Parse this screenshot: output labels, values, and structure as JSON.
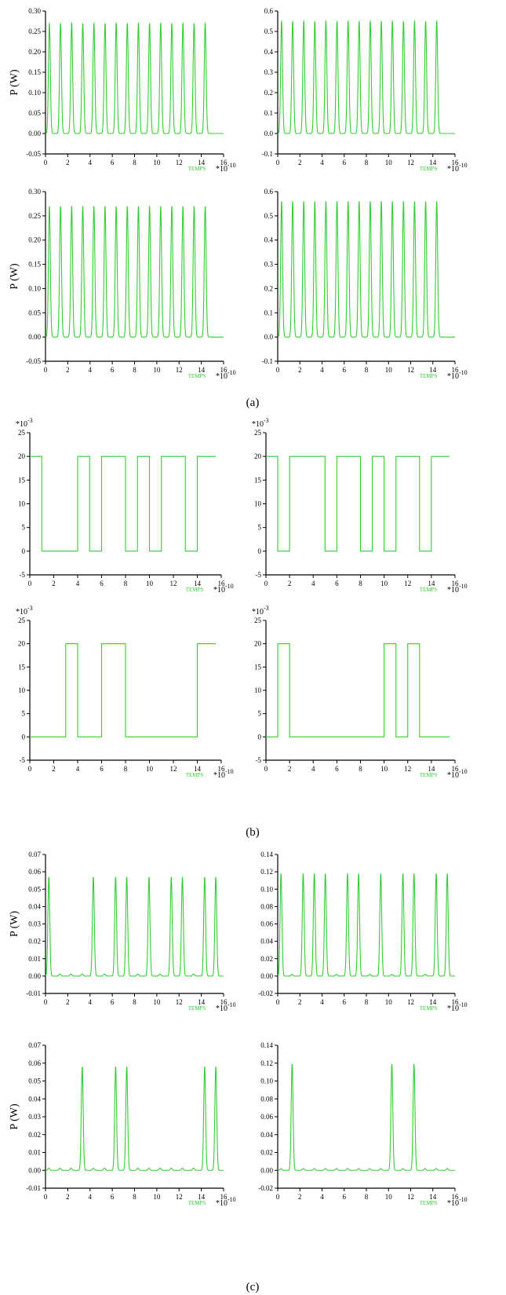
{
  "figure": {
    "section_labels": [
      "(a)",
      "(b)",
      "(c)"
    ],
    "colors": {
      "trace": "#33cc33",
      "tag": "#33cc33",
      "axis": "#000000"
    }
  },
  "chart_data": [
    {
      "id": "a1",
      "type": "line",
      "section": "a",
      "ylabel": "P (W)",
      "xtag": "TEMPS",
      "xmult_base": "*10",
      "xmult_exp": "-10",
      "ymult_base": "",
      "ymult_exp": "",
      "xlim": [
        0,
        16
      ],
      "ylim": [
        -0.05,
        0.3
      ],
      "xticks": [
        "0",
        "2",
        "4",
        "6",
        "8",
        "10",
        "12",
        "14",
        "16"
      ],
      "yticks": [
        "-0.05",
        "0.00",
        "0.05",
        "0.10",
        "0.15",
        "0.20",
        "0.25",
        "0.30"
      ],
      "signal": {
        "kind": "pulses",
        "period": 1,
        "offset": 0.35,
        "count": 15,
        "peak": 0.27,
        "width": 0.2
      }
    },
    {
      "id": "a2",
      "type": "line",
      "section": "a",
      "ylabel": "",
      "xtag": "TEMPS",
      "xmult_base": "*10",
      "xmult_exp": "-10",
      "ymult_base": "",
      "ymult_exp": "",
      "xlim": [
        0,
        16
      ],
      "ylim": [
        -0.1,
        0.6
      ],
      "xticks": [
        "0",
        "2",
        "4",
        "6",
        "8",
        "10",
        "12",
        "14",
        "16"
      ],
      "yticks": [
        "-0.1",
        "0.0",
        "0.1",
        "0.2",
        "0.3",
        "0.4",
        "0.5",
        "0.6"
      ],
      "signal": {
        "kind": "pulses",
        "period": 1,
        "offset": 0.35,
        "count": 15,
        "peak": 0.55,
        "width": 0.2
      }
    },
    {
      "id": "a3",
      "type": "line",
      "section": "a",
      "ylabel": "P (W)",
      "xtag": "TEMPS",
      "xmult_base": "*10",
      "xmult_exp": "-10",
      "ymult_base": "",
      "ymult_exp": "",
      "xlim": [
        0,
        16
      ],
      "ylim": [
        -0.05,
        0.3
      ],
      "xticks": [
        "0",
        "2",
        "4",
        "6",
        "8",
        "10",
        "12",
        "14",
        "16"
      ],
      "yticks": [
        "-0.05",
        "0.00",
        "0.05",
        "0.10",
        "0.15",
        "0.20",
        "0.25",
        "0.30"
      ],
      "signal": {
        "kind": "pulses",
        "period": 1,
        "offset": 0.35,
        "count": 15,
        "peak": 0.27,
        "width": 0.2
      }
    },
    {
      "id": "a4",
      "type": "line",
      "section": "a",
      "ylabel": "",
      "xtag": "TEMPS",
      "xmult_base": "*10",
      "xmult_exp": "-10",
      "ymult_base": "",
      "ymult_exp": "",
      "xlim": [
        0,
        16
      ],
      "ylim": [
        -0.1,
        0.6
      ],
      "xticks": [
        "0",
        "2",
        "4",
        "6",
        "8",
        "10",
        "12",
        "14",
        "16"
      ],
      "yticks": [
        "-0.1",
        "0.0",
        "0.1",
        "0.2",
        "0.3",
        "0.4",
        "0.5",
        "0.6"
      ],
      "signal": {
        "kind": "pulses",
        "period": 1,
        "offset": 0.35,
        "count": 15,
        "peak": 0.56,
        "width": 0.2
      }
    },
    {
      "id": "b1",
      "type": "line",
      "section": "b",
      "ylabel": "",
      "xtag": "TEMPS",
      "xmult_base": "*10",
      "xmult_exp": "-10",
      "ymult_base": "*10",
      "ymult_exp": "-3",
      "xlim": [
        0,
        16
      ],
      "ylim": [
        -5,
        25
      ],
      "xticks": [
        "0",
        "2",
        "4",
        "6",
        "8",
        "10",
        "12",
        "14",
        "16"
      ],
      "yticks": [
        "-5",
        "0",
        "5",
        "10",
        "15",
        "20",
        "25"
      ],
      "signal": {
        "kind": "bits",
        "bits": [
          1,
          0,
          0,
          0,
          1,
          0,
          1,
          1,
          0,
          1,
          0,
          1,
          1,
          0,
          1,
          1
        ],
        "high": 20,
        "low": 0
      }
    },
    {
      "id": "b2",
      "type": "line",
      "section": "b",
      "ylabel": "",
      "xtag": "TEMPS",
      "xmult_base": "*10",
      "xmult_exp": "-10",
      "ymult_base": "*10",
      "ymult_exp": "-3",
      "xlim": [
        0,
        16
      ],
      "ylim": [
        -5,
        25
      ],
      "xticks": [
        "0",
        "2",
        "4",
        "6",
        "8",
        "10",
        "12",
        "14",
        "16"
      ],
      "yticks": [
        "-5",
        "0",
        "5",
        "10",
        "15",
        "20",
        "25"
      ],
      "signal": {
        "kind": "bits",
        "bits": [
          1,
          0,
          1,
          1,
          1,
          0,
          1,
          1,
          0,
          1,
          0,
          1,
          1,
          0,
          1,
          1
        ],
        "high": 20,
        "low": 0
      }
    },
    {
      "id": "b3",
      "type": "line",
      "section": "b",
      "ylabel": "",
      "xtag": "TEMPS",
      "xmult_base": "*10",
      "xmult_exp": "-10",
      "ymult_base": "*10",
      "ymult_exp": "-3",
      "xlim": [
        0,
        16
      ],
      "ylim": [
        -5,
        25
      ],
      "xticks": [
        "0",
        "2",
        "4",
        "6",
        "8",
        "10",
        "12",
        "14",
        "16"
      ],
      "yticks": [
        "-5",
        "0",
        "5",
        "10",
        "15",
        "20",
        "25"
      ],
      "signal": {
        "kind": "bits",
        "bits": [
          0,
          0,
          0,
          1,
          0,
          0,
          1,
          1,
          0,
          0,
          0,
          0,
          0,
          0,
          1,
          1
        ],
        "high": 20,
        "low": 0
      }
    },
    {
      "id": "b4",
      "type": "line",
      "section": "b",
      "ylabel": "",
      "xtag": "TEMPS",
      "xmult_base": "*10",
      "xmult_exp": "-10",
      "ymult_base": "*10",
      "ymult_exp": "-3",
      "xlim": [
        0,
        16
      ],
      "ylim": [
        -5,
        25
      ],
      "xticks": [
        "0",
        "2",
        "4",
        "6",
        "8",
        "10",
        "12",
        "14",
        "16"
      ],
      "yticks": [
        "-5",
        "0",
        "5",
        "10",
        "15",
        "20",
        "25"
      ],
      "signal": {
        "kind": "bits",
        "bits": [
          0,
          1,
          0,
          0,
          0,
          0,
          0,
          0,
          0,
          0,
          1,
          0,
          1,
          0,
          0,
          0
        ],
        "high": 20,
        "low": 0
      }
    },
    {
      "id": "c1",
      "type": "line",
      "section": "c",
      "ylabel": "P (W)",
      "xtag": "TEMPS",
      "xmult_base": "*10",
      "xmult_exp": "-10",
      "ymult_base": "",
      "ymult_exp": "",
      "xlim": [
        0,
        16
      ],
      "ylim": [
        -0.01,
        0.07
      ],
      "xticks": [
        "0",
        "2",
        "4",
        "6",
        "8",
        "10",
        "12",
        "14",
        "16"
      ],
      "yticks": [
        "-0.01",
        "0.00",
        "0.01",
        "0.02",
        "0.03",
        "0.04",
        "0.05",
        "0.06",
        "0.07"
      ],
      "signal": {
        "kind": "pulses",
        "period": 1,
        "offset": 0.3,
        "count": 16,
        "peak": 0.057,
        "width": 0.2,
        "bits": [
          1,
          0,
          0,
          0,
          1,
          0,
          1,
          1,
          0,
          1,
          0,
          1,
          1,
          0,
          1,
          1
        ],
        "residual": 0.0012
      }
    },
    {
      "id": "c2",
      "type": "line",
      "section": "c",
      "ylabel": "",
      "xtag": "TEMPS",
      "xmult_base": "*10",
      "xmult_exp": "-10",
      "ymult_base": "",
      "ymult_exp": "",
      "xlim": [
        0,
        16
      ],
      "ylim": [
        -0.02,
        0.14
      ],
      "xticks": [
        "0",
        "2",
        "4",
        "6",
        "8",
        "10",
        "12",
        "14",
        "16"
      ],
      "yticks": [
        "-0.02",
        "0.00",
        "0.02",
        "0.04",
        "0.06",
        "0.08",
        "0.10",
        "0.12",
        "0.14"
      ],
      "signal": {
        "kind": "pulses",
        "period": 1,
        "offset": 0.3,
        "count": 16,
        "peak": 0.118,
        "width": 0.2,
        "bits": [
          1,
          0,
          1,
          1,
          1,
          0,
          1,
          1,
          0,
          1,
          0,
          1,
          1,
          0,
          1,
          1
        ],
        "residual": 0.002
      }
    },
    {
      "id": "c3",
      "type": "line",
      "section": "c",
      "ylabel": "P (W)",
      "xtag": "TEMPS",
      "xmult_base": "*10",
      "xmult_exp": "-10",
      "ymult_base": "",
      "ymult_exp": "",
      "xlim": [
        0,
        16
      ],
      "ylim": [
        -0.01,
        0.07
      ],
      "xticks": [
        "0",
        "2",
        "4",
        "6",
        "8",
        "10",
        "12",
        "14",
        "16"
      ],
      "yticks": [
        "-0.01",
        "0.00",
        "0.01",
        "0.02",
        "0.03",
        "0.04",
        "0.05",
        "0.06",
        "0.07"
      ],
      "signal": {
        "kind": "pulses",
        "period": 1,
        "offset": 0.3,
        "count": 16,
        "peak": 0.058,
        "width": 0.2,
        "bits": [
          0,
          0,
          0,
          1,
          0,
          0,
          1,
          1,
          0,
          0,
          0,
          0,
          0,
          0,
          1,
          1
        ],
        "residual": 0.0012
      }
    },
    {
      "id": "c4",
      "type": "line",
      "section": "c",
      "ylabel": "",
      "xtag": "TEMPS",
      "xmult_base": "*10",
      "xmult_exp": "-10",
      "ymult_base": "",
      "ymult_exp": "",
      "xlim": [
        0,
        16
      ],
      "ylim": [
        -0.02,
        0.14
      ],
      "xticks": [
        "0",
        "2",
        "4",
        "6",
        "8",
        "10",
        "12",
        "14",
        "16"
      ],
      "yticks": [
        "-0.02",
        "0.00",
        "0.02",
        "0.04",
        "0.06",
        "0.08",
        "0.10",
        "0.12",
        "0.14"
      ],
      "signal": {
        "kind": "pulses",
        "period": 1,
        "offset": 0.3,
        "count": 16,
        "peak": 0.119,
        "width": 0.2,
        "bits": [
          0,
          1,
          0,
          0,
          0,
          0,
          0,
          0,
          0,
          0,
          1,
          0,
          1,
          0,
          0,
          0
        ],
        "residual": 0.002
      }
    }
  ]
}
